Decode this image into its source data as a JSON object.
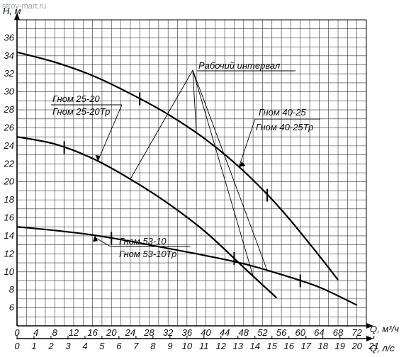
{
  "watermark": "stroy-mart.ru",
  "chart_data": {
    "type": "line",
    "ylabel": "H, м",
    "xlabel": "Q, м³/ч",
    "x2label": "Q, л/с",
    "xlim": [
      0,
      74
    ],
    "ylim": [
      4,
      38
    ],
    "x_ticks": [
      0,
      4,
      8,
      12,
      16,
      20,
      24,
      28,
      32,
      36,
      40,
      44,
      48,
      52,
      56,
      60,
      64,
      68,
      72
    ],
    "x2_ticks": [
      0,
      1,
      2,
      3,
      4,
      5,
      6,
      7,
      8,
      9,
      10,
      11,
      12,
      13,
      14,
      15,
      16,
      17,
      18,
      19,
      20,
      21
    ],
    "y_ticks": [
      6,
      8,
      10,
      12,
      14,
      16,
      18,
      20,
      22,
      24,
      26,
      28,
      30,
      32,
      34,
      36
    ],
    "grid": true,
    "series": [
      {
        "name": "Гном 40-25 / Гном 40-25Тр",
        "labels": [
          "Гном 40-25",
          "Гном 40-25Тр"
        ],
        "x": [
          0,
          8,
          16,
          24,
          32,
          40,
          48,
          56,
          64,
          68
        ],
        "y": [
          34.4,
          33.3,
          31.8,
          29.8,
          27.5,
          24.7,
          21.2,
          16.9,
          11.8,
          9.1
        ],
        "interval_marks": [
          26,
          53
        ]
      },
      {
        "name": "Гном 25-20 / Гном 25-20Тр",
        "labels": [
          "Гном 25-20",
          "Гном 25-20Тр"
        ],
        "x": [
          0,
          8,
          16,
          24,
          32,
          40,
          48,
          55
        ],
        "y": [
          25,
          24.2,
          22.6,
          20.3,
          17.6,
          14.4,
          10.5,
          7.1
        ],
        "interval_marks": [
          10,
          46
        ]
      },
      {
        "name": "Гном 53-10 / Гном 53-10Тр",
        "labels": [
          "Гном 53-10",
          "Гном 53-10Тр"
        ],
        "x": [
          0,
          8,
          16,
          24,
          32,
          40,
          48,
          56,
          64,
          72
        ],
        "y": [
          15,
          14.6,
          14.1,
          13.4,
          12.6,
          11.8,
          10.9,
          9.7,
          8.3,
          6.3
        ],
        "interval_marks": [
          20,
          60
        ]
      }
    ],
    "annotation": "Рабочий интервал"
  }
}
